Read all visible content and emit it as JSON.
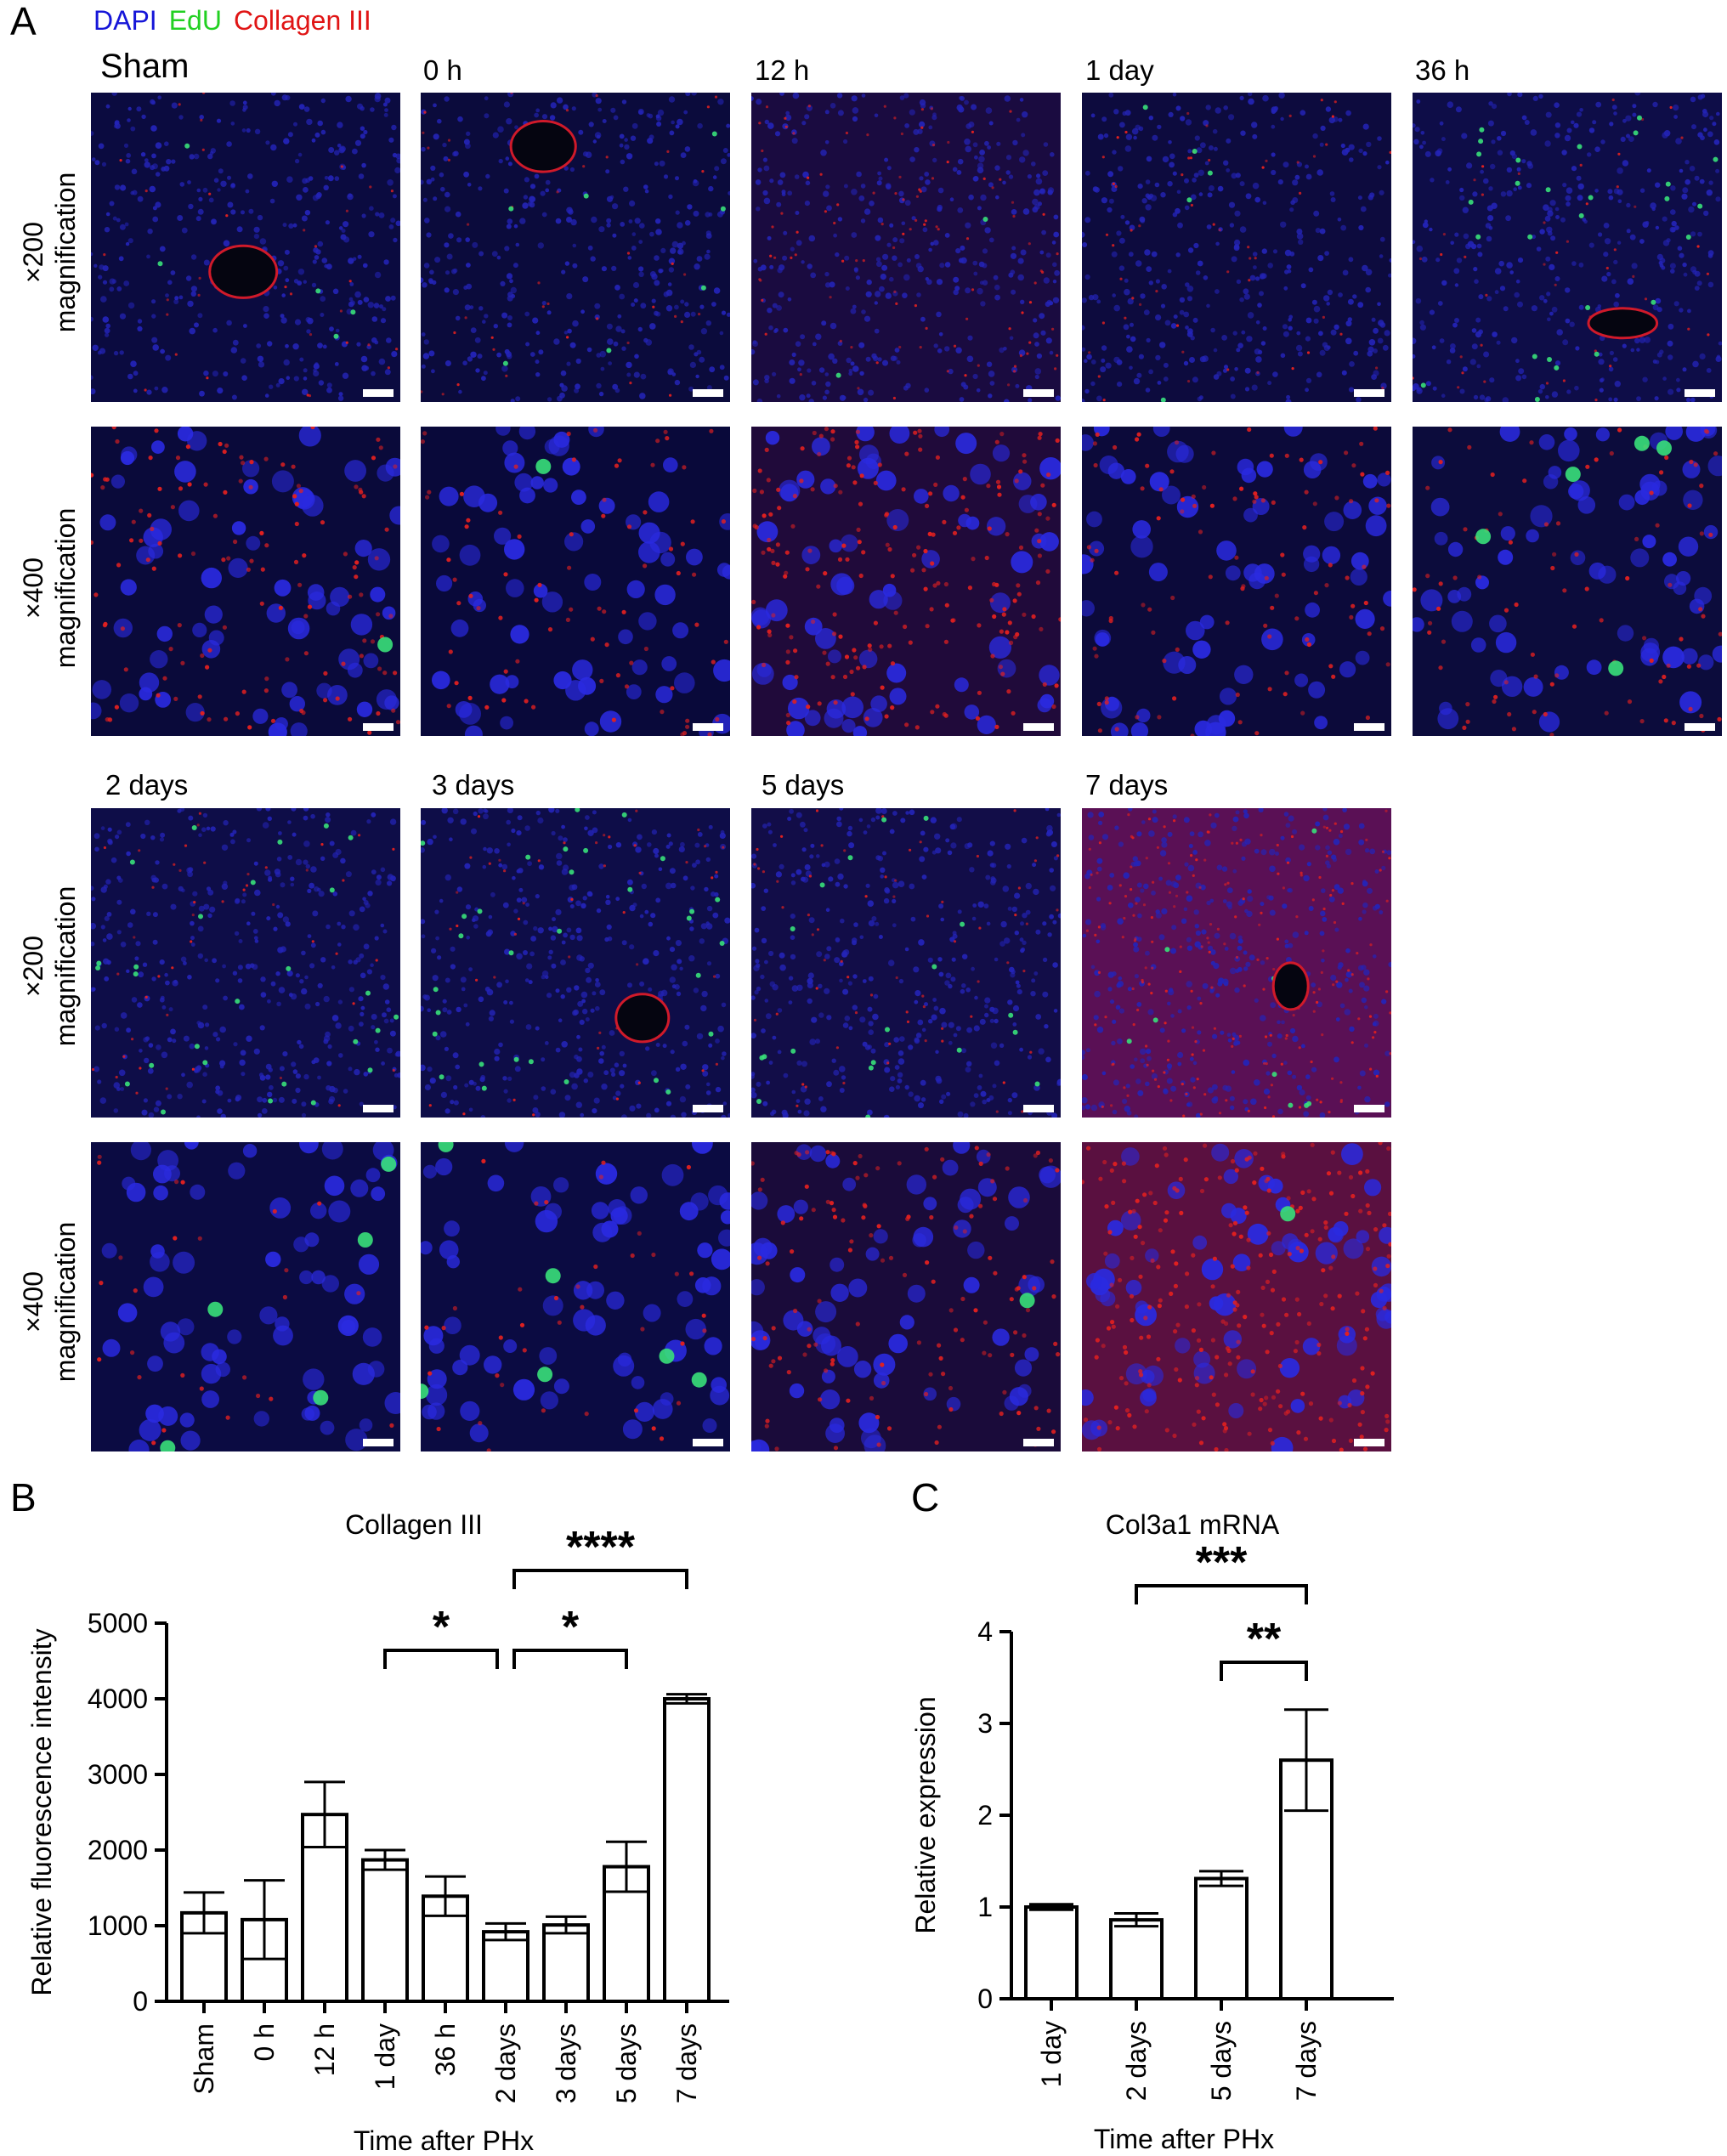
{
  "panel_letters": {
    "a": "A",
    "b": "B",
    "c": "C"
  },
  "legend": [
    {
      "label": "DAPI",
      "color": "#1515d8"
    },
    {
      "label": "EdU",
      "color": "#22d022"
    },
    {
      "label": "Collagen III",
      "color": "#e01515"
    }
  ],
  "timepoints_row1": [
    "Sham",
    "0 h",
    "12 h",
    "1 day",
    "36 h"
  ],
  "timepoints_row2": [
    "2 days",
    "3 days",
    "5 days",
    "7 days"
  ],
  "magnification_labels": {
    "x200_line1": "×200",
    "x200_line2": "magnification",
    "x400_line1": "×400",
    "x400_line2": "magnification"
  },
  "micrographs": {
    "row1_x200": [
      {
        "tint": "#0b0b40",
        "red": 0.15,
        "green": 0.1
      },
      {
        "tint": "#0b0b3c",
        "red": 0.18,
        "green": 0.15
      },
      {
        "tint": "#1a0b40",
        "red": 0.45,
        "green": 0.05
      },
      {
        "tint": "#0d0b3e",
        "red": 0.25,
        "green": 0.1
      },
      {
        "tint": "#0e0d48",
        "red": 0.2,
        "green": 0.6
      }
    ],
    "row1_x400": [
      {
        "tint": "#0a0a3a",
        "red": 0.5,
        "green": 0.05
      },
      {
        "tint": "#09093a",
        "red": 0.3,
        "green": 0.05
      },
      {
        "tint": "#200a3a",
        "red": 0.8,
        "green": 0.0
      },
      {
        "tint": "#0c0a3a",
        "red": 0.4,
        "green": 0.0
      },
      {
        "tint": "#0c0c3c",
        "red": 0.35,
        "green": 0.5
      }
    ],
    "row2_x200": [
      {
        "tint": "#0e0d48",
        "red": 0.2,
        "green": 0.6
      },
      {
        "tint": "#0e0d48",
        "red": 0.2,
        "green": 0.7
      },
      {
        "tint": "#120d48",
        "red": 0.3,
        "green": 0.45
      },
      {
        "tint": "#5a1055",
        "red": 0.9,
        "green": 0.2
      }
    ],
    "row2_x400": [
      {
        "tint": "#0b0b42",
        "red": 0.1,
        "green": 0.5
      },
      {
        "tint": "#0b0b42",
        "red": 0.15,
        "green": 0.55
      },
      {
        "tint": "#1a0b3a",
        "red": 0.5,
        "green": 0.1
      },
      {
        "tint": "#5a1040",
        "red": 1.0,
        "green": 0.05
      }
    ]
  },
  "chart_data": [
    {
      "type": "bar",
      "title": "Collagen III",
      "xlabel": "Time after PHx",
      "ylabel": "Relative fluorescence intensity",
      "categories": [
        "Sham",
        "0 h",
        "12 h",
        "1 day",
        "36 h",
        "2 days",
        "3 days",
        "5 days",
        "7 days"
      ],
      "values": [
        1170,
        1080,
        2470,
        1870,
        1390,
        920,
        1010,
        1780,
        4000
      ],
      "errors": [
        270,
        520,
        430,
        130,
        260,
        110,
        110,
        330,
        60
      ],
      "ylim": [
        0,
        5000
      ],
      "yticks": [
        0,
        1000,
        2000,
        3000,
        4000,
        5000
      ],
      "significance": [
        {
          "from": "1 day",
          "to": "2 days",
          "label": "*"
        },
        {
          "from": "2 days",
          "to": "5 days",
          "label": "*"
        },
        {
          "from": "2 days",
          "to": "7 days",
          "label": "****"
        }
      ]
    },
    {
      "type": "bar",
      "title": "Col3a1 mRNA",
      "xlabel": "Time after PHx",
      "ylabel": "Relative expression",
      "categories": [
        "1 day",
        "2 days",
        "5 days",
        "7 days"
      ],
      "values": [
        1.0,
        0.86,
        1.31,
        2.6
      ],
      "errors": [
        0.03,
        0.07,
        0.08,
        0.55
      ],
      "ylim": [
        0,
        4
      ],
      "yticks": [
        0,
        1,
        2,
        3,
        4
      ],
      "significance": [
        {
          "from": "5 days",
          "to": "7 days",
          "label": "**"
        },
        {
          "from": "2 days",
          "to": "7 days",
          "label": "***"
        }
      ]
    }
  ]
}
